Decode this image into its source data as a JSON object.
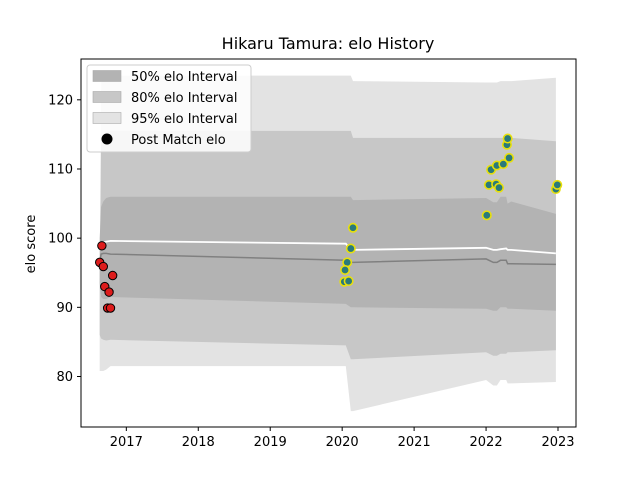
{
  "chart_data": {
    "type": "scatter",
    "title": "Hikaru Tamura: elo History",
    "xlabel": "",
    "ylabel": "elo score",
    "xlim": [
      2016.37,
      2023.25
    ],
    "ylim": [
      72.7,
      125.9
    ],
    "x_ticks": [
      {
        "value": 2017,
        "label": "2017"
      },
      {
        "value": 2018,
        "label": "2018"
      },
      {
        "value": 2019,
        "label": "2019"
      },
      {
        "value": 2020,
        "label": "2020"
      },
      {
        "value": 2021,
        "label": "2021"
      },
      {
        "value": 2022,
        "label": "2022"
      },
      {
        "value": 2023,
        "label": "2023"
      }
    ],
    "y_ticks": [
      {
        "value": 80,
        "label": "80"
      },
      {
        "value": 90,
        "label": "90"
      },
      {
        "value": 100,
        "label": "100"
      },
      {
        "value": 110,
        "label": "110"
      },
      {
        "value": 120,
        "label": "120"
      }
    ],
    "grid": false,
    "legend_position": "top-left",
    "legend": [
      {
        "label": "50% elo Interval",
        "kind": "band50"
      },
      {
        "label": "80% elo Interval",
        "kind": "band80"
      },
      {
        "label": "95% elo Interval",
        "kind": "band95"
      },
      {
        "label": "Post Match elo",
        "kind": "point"
      }
    ],
    "colors": {
      "band95": "#e3e3e3",
      "band80": "#c7c7c7",
      "band50": "#b3b3b3",
      "mean_line": "#ffffff",
      "median_line": "#808080",
      "point_red": "#dd1c1c",
      "point_yellow_edge": "#e8e00c",
      "point_yellow_face": "#2a7a7a"
    },
    "intervals": {
      "x": [
        2016.63,
        2016.65,
        2016.68,
        2016.72,
        2016.78,
        2020.05,
        2020.12,
        2020.15,
        2022.0,
        2022.1,
        2022.15,
        2022.2,
        2022.28,
        2022.3,
        2022.35,
        2022.97
      ],
      "upper95": [
        89.5,
        122.5,
        123.0,
        123.4,
        123.5,
        123.5,
        123.5,
        122.7,
        122.5,
        122.5,
        122.5,
        122.7,
        122.7,
        122.7,
        122.7,
        123.2
      ],
      "upper80": [
        94.0,
        114.0,
        114.8,
        115.3,
        115.5,
        115.5,
        115.5,
        114.5,
        114.5,
        114.5,
        114.5,
        114.5,
        114.5,
        114.5,
        114.5,
        114.0
      ],
      "upper50": [
        100.0,
        104.5,
        105.3,
        105.8,
        106.0,
        106.0,
        106.0,
        105.5,
        105.8,
        105.2,
        105.2,
        106.0,
        106.0,
        105.0,
        105.3,
        103.5
      ],
      "mean": [
        98.8,
        99.2,
        99.4,
        99.5,
        99.6,
        99.2,
        98.3,
        98.3,
        98.6,
        98.3,
        98.3,
        98.4,
        98.5,
        98.3,
        98.3,
        97.8
      ],
      "median": [
        96.5,
        97.7,
        97.8,
        97.8,
        97.7,
        96.8,
        96.5,
        96.5,
        97.0,
        96.5,
        96.5,
        96.8,
        96.8,
        96.3,
        96.3,
        96.2
      ],
      "lower50": [
        93.5,
        91.5,
        91.2,
        91.2,
        91.5,
        90.5,
        90.0,
        90.0,
        89.8,
        89.5,
        89.5,
        90.0,
        90.0,
        89.8,
        89.8,
        89.5
      ],
      "lower80": [
        86.0,
        85.5,
        85.3,
        85.2,
        85.3,
        84.5,
        82.5,
        82.5,
        83.5,
        83.0,
        83.0,
        83.3,
        83.3,
        83.5,
        83.5,
        83.8
      ],
      "lower95": [
        80.8,
        80.8,
        80.8,
        81.0,
        81.5,
        81.5,
        75.0,
        75.0,
        79.5,
        78.7,
        78.7,
        79.5,
        79.5,
        79.0,
        79.0,
        79.2
      ]
    },
    "series": [
      {
        "group": "red",
        "points": [
          {
            "x": 2016.66,
            "y": 98.9
          },
          {
            "x": 2016.63,
            "y": 96.5
          },
          {
            "x": 2016.68,
            "y": 95.9
          },
          {
            "x": 2016.7,
            "y": 93.0
          },
          {
            "x": 2016.74,
            "y": 89.9
          },
          {
            "x": 2016.78,
            "y": 89.9
          },
          {
            "x": 2016.76,
            "y": 92.2
          },
          {
            "x": 2016.81,
            "y": 94.6
          }
        ]
      },
      {
        "group": "yellow",
        "points": [
          {
            "x": 2020.15,
            "y": 101.5
          },
          {
            "x": 2020.12,
            "y": 98.5
          },
          {
            "x": 2020.07,
            "y": 96.5
          },
          {
            "x": 2020.04,
            "y": 95.4
          },
          {
            "x": 2020.03,
            "y": 93.7
          },
          {
            "x": 2020.09,
            "y": 93.8
          },
          {
            "x": 2022.01,
            "y": 103.3
          },
          {
            "x": 2022.04,
            "y": 107.7
          },
          {
            "x": 2022.07,
            "y": 109.9
          },
          {
            "x": 2022.14,
            "y": 107.8
          },
          {
            "x": 2022.18,
            "y": 107.3
          },
          {
            "x": 2022.15,
            "y": 110.5
          },
          {
            "x": 2022.24,
            "y": 110.7
          },
          {
            "x": 2022.29,
            "y": 113.5
          },
          {
            "x": 2022.3,
            "y": 114.4
          },
          {
            "x": 2022.32,
            "y": 111.6
          },
          {
            "x": 2022.97,
            "y": 107.1
          },
          {
            "x": 2022.99,
            "y": 107.7
          }
        ]
      }
    ]
  }
}
